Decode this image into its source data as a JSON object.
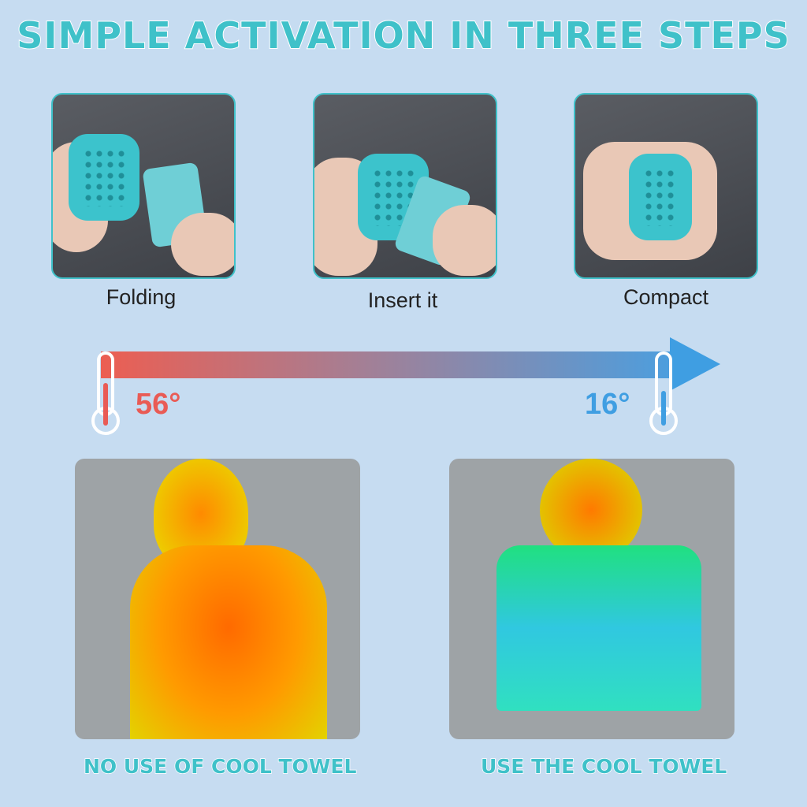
{
  "title": "SIMPLE ACTIVATION IN THREE STEPS",
  "steps": [
    {
      "label": "Folding"
    },
    {
      "label": "Insert it"
    },
    {
      "label": "Compact"
    }
  ],
  "temperature": {
    "hot": "56°",
    "cold": "16°",
    "hot_color": "#e95b55",
    "cold_color": "#3f9ee2"
  },
  "comparison": {
    "without": "NO USE OF COOL TOWEL",
    "with": "USE THE COOL TOWEL"
  },
  "colors": {
    "accent": "#3fc1c9",
    "background": "#c6dcf1"
  }
}
